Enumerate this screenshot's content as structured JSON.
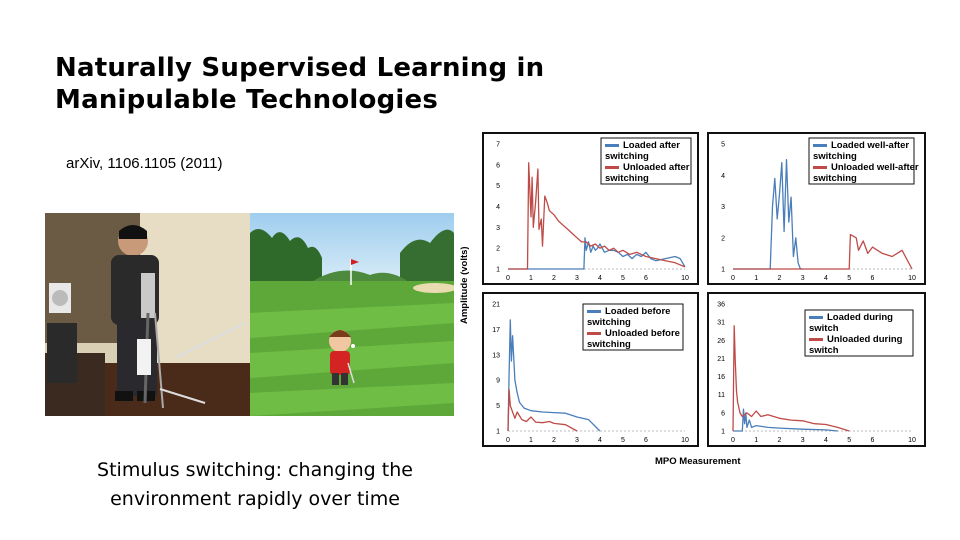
{
  "slide": {
    "title_line1": "Naturally Supervised Learning in",
    "title_line2": "Manipulable Technologies",
    "reference": "arXiv, 1106.1105 (2011)",
    "caption_line1": "Stimulus switching: changing the",
    "caption_line2": "environment rapidly over time"
  },
  "figure": {
    "ylabel": "Amplitude (volts)",
    "xlabel": "MPO Measurement"
  },
  "colors": {
    "loaded": "#4a7ebb",
    "unloaded": "#be4b48"
  },
  "chart_data": [
    {
      "type": "line",
      "panel": "top-left",
      "xticks": [
        "0",
        "1",
        "2",
        "3",
        "4",
        "5",
        "6",
        "10"
      ],
      "yticks": [
        "1",
        "2",
        "3",
        "4",
        "5",
        "6",
        "7"
      ],
      "ylim": [
        1,
        7
      ],
      "legend": [
        "Loaded after switching",
        "Unloaded after switching"
      ],
      "legend_position": "top-right",
      "series": [
        {
          "name": "Loaded after switching",
          "x": [
            0,
            3.3,
            3.35,
            3.4,
            3.5,
            3.6,
            3.7,
            3.8,
            3.9,
            4.0,
            4.2,
            4.4,
            4.6,
            4.8,
            5.0,
            5.2,
            5.4,
            5.6,
            5.8,
            6,
            6.5,
            7,
            8,
            9,
            9.5,
            10
          ],
          "y": [
            1,
            1,
            2.5,
            1.9,
            2.3,
            1.8,
            2.1,
            1.9,
            2.0,
            2.2,
            1.8,
            1.9,
            1.9,
            1.8,
            1.6,
            1.7,
            1.5,
            1.7,
            1.6,
            1.8,
            1.5,
            1.4,
            1.5,
            1.6,
            1.5,
            1.1
          ]
        },
        {
          "name": "Unloaded after switching",
          "x": [
            0,
            0.85,
            0.9,
            1.0,
            1.05,
            1.1,
            1.2,
            1.3,
            1.35,
            1.45,
            1.5,
            1.6,
            1.7,
            1.8,
            2.0,
            2.2,
            2.4,
            2.6,
            2.8,
            3.0,
            3.2,
            3.4,
            3.6,
            3.8,
            4.0,
            4.2,
            4.4,
            4.6,
            4.8,
            5.0,
            5.3,
            5.6,
            6,
            7,
            8,
            9,
            10
          ],
          "y": [
            1,
            1,
            6.1,
            3.5,
            5.4,
            3.0,
            4.2,
            5.8,
            2.9,
            3.4,
            2.1,
            4.5,
            4.2,
            3.8,
            3.6,
            3.3,
            3.1,
            2.9,
            2.7,
            2.5,
            2.3,
            2.3,
            2.1,
            2.2,
            2.0,
            2.1,
            1.9,
            2.0,
            1.8,
            1.9,
            1.7,
            1.8,
            1.6,
            1.5,
            1.4,
            1.3,
            1.1
          ]
        }
      ]
    },
    {
      "type": "line",
      "panel": "top-right",
      "xticks": [
        "0",
        "1",
        "2",
        "3",
        "4",
        "5",
        "6",
        "10"
      ],
      "yticks": [
        "1",
        "2",
        "3",
        "4",
        "5"
      ],
      "ylim": [
        1,
        5
      ],
      "legend": [
        "Loaded well-after switching",
        "Unloaded well-after switching"
      ],
      "legend_position": "top-right",
      "series": [
        {
          "name": "Loaded well-after switching",
          "x": [
            0,
            1.6,
            1.7,
            1.8,
            1.9,
            2.0,
            2.1,
            2.2,
            2.3,
            2.4,
            2.5,
            2.6,
            2.7,
            2.8,
            2.9,
            3.0
          ],
          "y": [
            1,
            1,
            3.0,
            3.9,
            2.6,
            3.4,
            4.4,
            2.2,
            4.5,
            2.5,
            3.3,
            1.4,
            2.0,
            1.2,
            1.0,
            1.0
          ]
        },
        {
          "name": "Unloaded well-after switching",
          "x": [
            0,
            5.0,
            5.05,
            5.3,
            5.4,
            5.6,
            5.8,
            6.0,
            6.5,
            7,
            8,
            9,
            10
          ],
          "y": [
            1,
            1,
            2.1,
            2.0,
            1.6,
            1.9,
            1.5,
            1.7,
            1.6,
            1.5,
            1.4,
            1.6,
            1.0
          ]
        }
      ]
    },
    {
      "type": "line",
      "panel": "bottom-left",
      "xticks": [
        "0",
        "1",
        "2",
        "3",
        "4",
        "5",
        "6",
        "10"
      ],
      "yticks": [
        "1",
        "5",
        "9",
        "13",
        "17",
        "21"
      ],
      "ylim": [
        1,
        21
      ],
      "legend": [
        "Loaded before switching",
        "Unloaded before switching"
      ],
      "legend_position": "top-right",
      "series": [
        {
          "name": "Loaded before switching",
          "x": [
            0,
            0.05,
            0.1,
            0.15,
            0.2,
            0.3,
            0.4,
            0.5,
            0.7,
            1.0,
            1.5,
            2.0,
            2.5,
            3.0,
            3.5,
            4.0
          ],
          "y": [
            1,
            10,
            18.5,
            12,
            16,
            9,
            7,
            5.5,
            4.6,
            4.2,
            4.0,
            3.9,
            3.8,
            3.2,
            2.8,
            1.0
          ]
        },
        {
          "name": "Unloaded before switching",
          "x": [
            0,
            0.05,
            0.1,
            0.2,
            0.3,
            0.4,
            0.6,
            0.8,
            1.0,
            1.2,
            1.5,
            1.8,
            2.0,
            2.5,
            3.0
          ],
          "y": [
            1,
            7.5,
            5,
            4,
            3,
            4,
            2.8,
            2.5,
            3.2,
            2.4,
            2.3,
            2.5,
            2.2,
            2.0,
            1.0
          ]
        }
      ]
    },
    {
      "type": "line",
      "panel": "bottom-right",
      "xticks": [
        "0",
        "1",
        "2",
        "3",
        "4",
        "5",
        "6",
        "10"
      ],
      "yticks": [
        "1",
        "6",
        "11",
        "16",
        "21",
        "26",
        "31",
        "36"
      ],
      "ylim": [
        1,
        36
      ],
      "legend": [
        "Loaded during switch",
        "Unloaded during switch"
      ],
      "legend_position": "top-right",
      "series": [
        {
          "name": "Loaded during switch",
          "x": [
            0,
            0.4,
            0.45,
            0.5,
            0.55,
            0.6,
            0.7,
            0.8,
            1.0,
            1.5,
            2.0,
            3.0,
            4.0,
            4.5
          ],
          "y": [
            1,
            1,
            7,
            3,
            6,
            2,
            4,
            2,
            2.5,
            2,
            1.8,
            1.5,
            1.3,
            1.0
          ]
        },
        {
          "name": "Unloaded during switch",
          "x": [
            0,
            0.05,
            0.1,
            0.15,
            0.2,
            0.3,
            0.4,
            0.6,
            0.8,
            1.0,
            1.2,
            1.5,
            2.0,
            2.5,
            3.0,
            3.5,
            4.0,
            4.5,
            5
          ],
          "y": [
            1,
            30,
            20,
            12,
            9,
            6,
            5,
            6,
            5,
            6.5,
            5,
            5.5,
            4.5,
            4,
            3.8,
            3,
            2.8,
            2,
            1.0
          ]
        }
      ]
    }
  ]
}
